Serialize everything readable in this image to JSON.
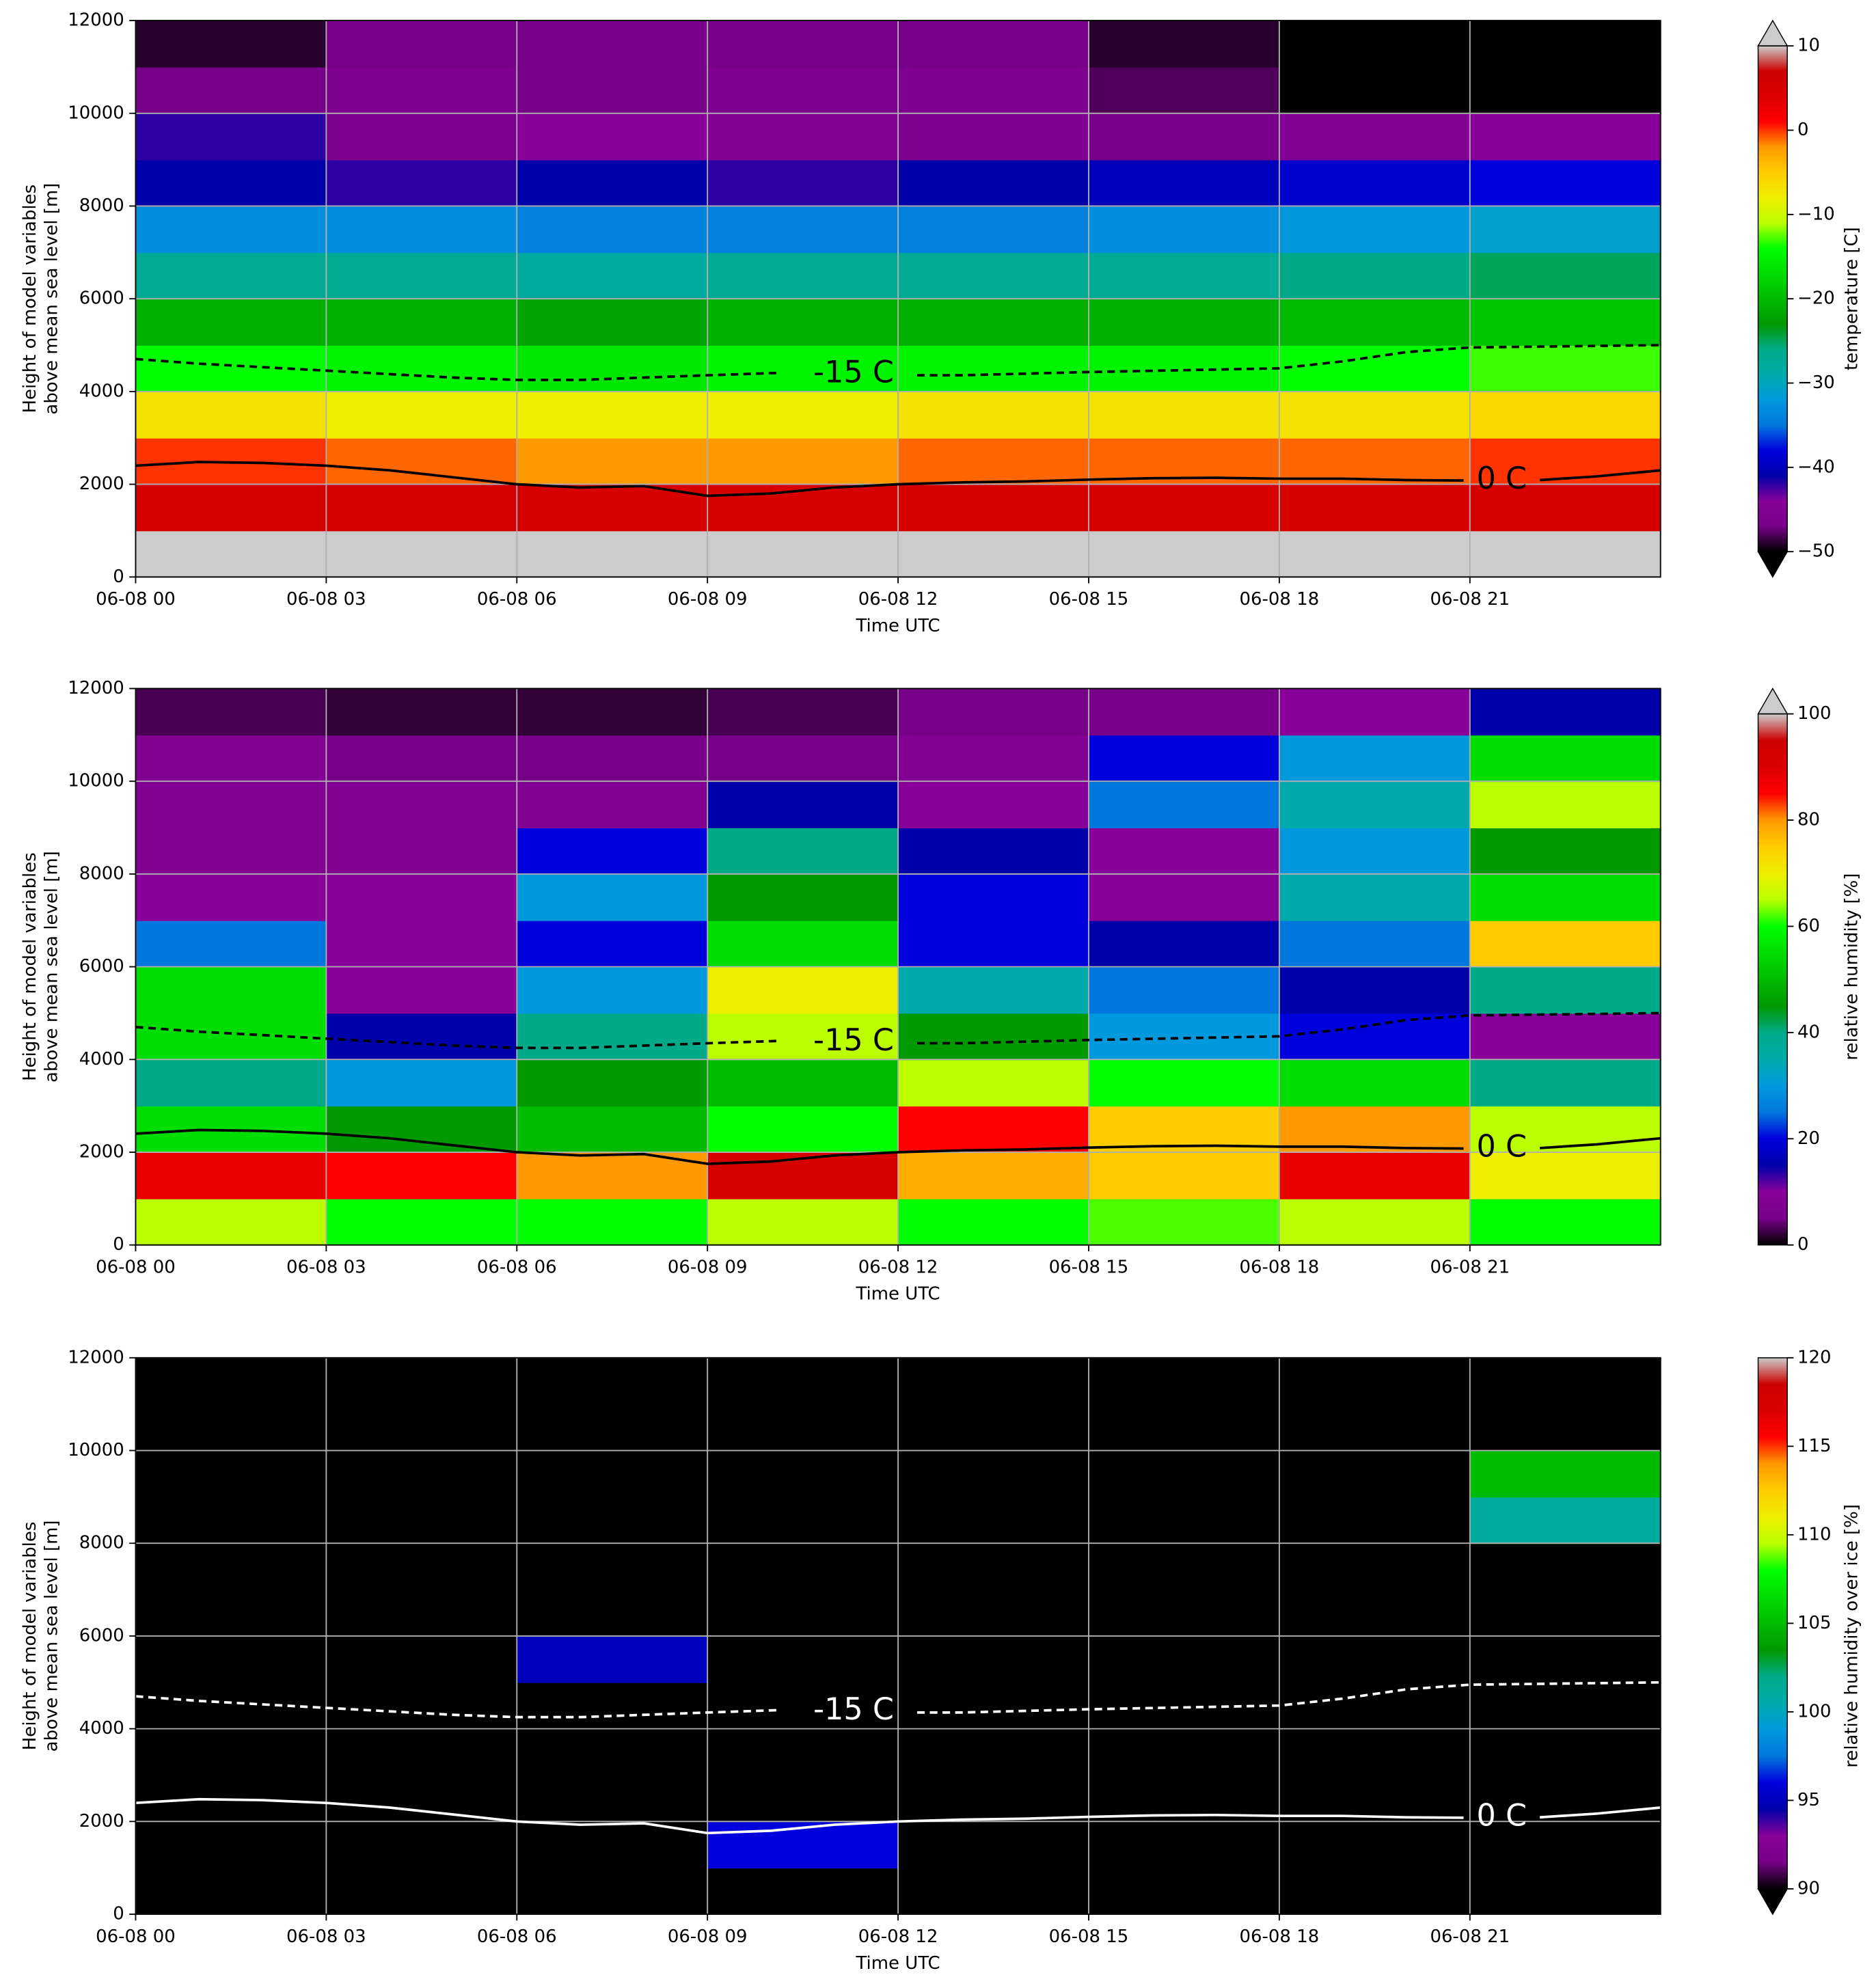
{
  "chart_data": [
    {
      "type": "heatmap",
      "xlabel": "Time UTC",
      "ylabel": [
        "Height of model variables",
        "above mean sea level [m]"
      ],
      "xlim": [
        0,
        24
      ],
      "xticks": [
        {
          "value": 0,
          "label": "06-08 00"
        },
        {
          "value": 3,
          "label": "06-08 03"
        },
        {
          "value": 6,
          "label": "06-08 06"
        },
        {
          "value": 9,
          "label": "06-08 09"
        },
        {
          "value": 12,
          "label": "06-08 12"
        },
        {
          "value": 15,
          "label": "06-08 15"
        },
        {
          "value": 18,
          "label": "06-08 18"
        },
        {
          "value": 21,
          "label": "06-08 21"
        }
      ],
      "ylim": [
        0,
        12000
      ],
      "yticks": [
        0,
        2000,
        4000,
        6000,
        8000,
        10000,
        12000
      ],
      "grid": true,
      "colormap": "nipy_spectral",
      "over_color": "#cccccc",
      "under_color": "#000000",
      "extend": "both",
      "clim": [
        -50,
        10
      ],
      "cticks": [
        {
          "value": -50,
          "label": "−50"
        },
        {
          "value": -40,
          "label": "−40"
        },
        {
          "value": -30,
          "label": "−30"
        },
        {
          "value": -20,
          "label": "−20"
        },
        {
          "value": -10,
          "label": "−10"
        },
        0,
        10
      ],
      "colorbar_label": "temperature [C]",
      "contour_color": "#000000",
      "times": [
        1.5,
        4.5,
        7.5,
        10.5,
        13.5,
        16.5,
        19.5,
        22.5
      ],
      "heights": [
        500,
        1500,
        2500,
        3500,
        4500,
        5500,
        6500,
        7500,
        8500,
        9500,
        10500,
        11500
      ],
      "z": [
        [
          11,
          11,
          11,
          11,
          11,
          11,
          11,
          11
        ],
        [
          5,
          6,
          5,
          5,
          5,
          5,
          5,
          5
        ],
        [
          0,
          -1,
          -2,
          -2,
          -1,
          -1,
          -1,
          0
        ],
        [
          -7,
          -8,
          -8,
          -8,
          -7,
          -7,
          -7,
          -6
        ],
        [
          -14,
          -15,
          -16,
          -15,
          -15,
          -15,
          -14,
          -13
        ],
        [
          -21,
          -21,
          -22,
          -21,
          -21,
          -21,
          -20,
          -19
        ],
        [
          -27,
          -27,
          -28,
          -27,
          -27,
          -27,
          -26,
          -25
        ],
        [
          -33,
          -33,
          -34,
          -34,
          -34,
          -33,
          -32,
          -31
        ],
        [
          -41,
          -42,
          -41,
          -42,
          -41,
          -40,
          -39,
          -38
        ],
        [
          -42,
          -46,
          -44,
          -45,
          -46,
          -47,
          -45,
          -44
        ],
        [
          -47,
          -46,
          -47,
          -46,
          -46,
          -48,
          -51,
          -51
        ],
        [
          -49,
          -47,
          -47,
          -47,
          -47,
          -49,
          -52,
          -52
        ]
      ]
    },
    {
      "type": "heatmap",
      "xlabel": "Time UTC",
      "ylabel": [
        "Height of model variables",
        "above mean sea level [m]"
      ],
      "xlim": [
        0,
        24
      ],
      "xticks": [
        {
          "value": 0,
          "label": "06-08 00"
        },
        {
          "value": 3,
          "label": "06-08 03"
        },
        {
          "value": 6,
          "label": "06-08 06"
        },
        {
          "value": 9,
          "label": "06-08 09"
        },
        {
          "value": 12,
          "label": "06-08 12"
        },
        {
          "value": 15,
          "label": "06-08 15"
        },
        {
          "value": 18,
          "label": "06-08 18"
        },
        {
          "value": 21,
          "label": "06-08 21"
        }
      ],
      "ylim": [
        0,
        12000
      ],
      "yticks": [
        0,
        2000,
        4000,
        6000,
        8000,
        10000,
        12000
      ],
      "grid": true,
      "colormap": "nipy_spectral",
      "over_color": "#cccccc",
      "under_color": "#000000",
      "extend": "max",
      "clim": [
        0,
        100
      ],
      "cticks": [
        0,
        20,
        40,
        60,
        80,
        100
      ],
      "colorbar_label": "relative humidity [%]",
      "contour_color": "#000000",
      "times": [
        1.5,
        4.5,
        7.5,
        10.5,
        13.5,
        16.5,
        19.5,
        22.5
      ],
      "heights": [
        500,
        1500,
        2500,
        3500,
        4500,
        5500,
        6500,
        7500,
        8500,
        9500,
        10500,
        11500
      ],
      "z": [
        [
          65,
          60,
          60,
          65,
          60,
          62,
          65,
          60
        ],
        [
          88,
          85,
          80,
          92,
          78,
          75,
          88,
          70
        ],
        [
          55,
          45,
          50,
          60,
          85,
          75,
          80,
          65
        ],
        [
          40,
          30,
          45,
          50,
          65,
          60,
          55,
          40
        ],
        [
          55,
          15,
          40,
          65,
          45,
          30,
          20,
          10
        ],
        [
          55,
          10,
          30,
          70,
          35,
          25,
          15,
          40
        ],
        [
          25,
          10,
          20,
          55,
          20,
          15,
          25,
          75
        ],
        [
          10,
          10,
          30,
          45,
          20,
          10,
          35,
          55
        ],
        [
          8,
          8,
          20,
          40,
          15,
          10,
          30,
          45
        ],
        [
          8,
          8,
          8,
          15,
          10,
          25,
          35,
          65
        ],
        [
          8,
          5,
          5,
          5,
          8,
          20,
          30,
          55
        ],
        [
          3,
          2,
          2,
          3,
          5,
          5,
          10,
          15
        ]
      ]
    },
    {
      "type": "heatmap",
      "xlabel": "Time UTC",
      "ylabel": [
        "Height of model variables",
        "above mean sea level [m]"
      ],
      "xlim": [
        0,
        24
      ],
      "xticks": [
        {
          "value": 0,
          "label": "06-08 00"
        },
        {
          "value": 3,
          "label": "06-08 03"
        },
        {
          "value": 6,
          "label": "06-08 06"
        },
        {
          "value": 9,
          "label": "06-08 09"
        },
        {
          "value": 12,
          "label": "06-08 12"
        },
        {
          "value": 15,
          "label": "06-08 15"
        },
        {
          "value": 18,
          "label": "06-08 18"
        },
        {
          "value": 21,
          "label": "06-08 21"
        }
      ],
      "ylim": [
        0,
        12000
      ],
      "yticks": [
        0,
        2000,
        4000,
        6000,
        8000,
        10000,
        12000
      ],
      "grid": true,
      "colormap": "nipy_spectral",
      "over_color": "#cccccc",
      "under_color": "#000000",
      "extend": "min",
      "clim": [
        90,
        120
      ],
      "cticks": [
        90,
        95,
        100,
        105,
        110,
        115,
        120
      ],
      "colorbar_label": "relative humidity over ice [%]",
      "contour_color": "#ffffff",
      "times": [
        1.5,
        4.5,
        7.5,
        10.5,
        13.5,
        16.5,
        19.5,
        22.5
      ],
      "heights": [
        500,
        1500,
        2500,
        3500,
        4500,
        5500,
        6500,
        7500,
        8500,
        9500,
        10500,
        11500
      ],
      "z": [
        [
          85,
          85,
          85,
          85,
          85,
          85,
          85,
          85
        ],
        [
          85,
          85,
          85,
          96,
          85,
          85,
          85,
          85
        ],
        [
          85,
          85,
          85,
          85,
          85,
          85,
          85,
          85
        ],
        [
          85,
          85,
          85,
          85,
          85,
          85,
          85,
          85
        ],
        [
          85,
          85,
          85,
          85,
          85,
          85,
          85,
          85
        ],
        [
          85,
          85,
          95,
          85,
          85,
          85,
          85,
          85
        ],
        [
          85,
          85,
          85,
          85,
          85,
          85,
          85,
          85
        ],
        [
          85,
          85,
          85,
          85,
          85,
          85,
          85,
          85
        ],
        [
          85,
          85,
          85,
          85,
          85,
          85,
          85,
          101
        ],
        [
          85,
          85,
          85,
          85,
          85,
          85,
          85,
          105
        ],
        [
          85,
          85,
          85,
          85,
          85,
          85,
          85,
          85
        ],
        [
          85,
          85,
          85,
          85,
          85,
          85,
          85,
          85
        ]
      ]
    }
  ],
  "contours": [
    {
      "label": "-15 C",
      "style": "dashed",
      "x": [
        0,
        1,
        3,
        5,
        6,
        7,
        8,
        9,
        10.1,
        11.3,
        12.3,
        13,
        15,
        18,
        19,
        20,
        21,
        24
      ],
      "y": [
        4700,
        4600,
        4450,
        4300,
        4250,
        4250,
        4300,
        4350,
        4400,
        null,
        4350,
        4350,
        4420,
        4500,
        4650,
        4850,
        4950,
        5000
      ]
    },
    {
      "label": "0 C",
      "style": "solid",
      "x": [
        0,
        1,
        2,
        3,
        4,
        5,
        6,
        7,
        8,
        9,
        10,
        11,
        12,
        13,
        14,
        15,
        16,
        17,
        18,
        19,
        20,
        20.9,
        21.5,
        22.1,
        23,
        24
      ],
      "y": [
        2400,
        2480,
        2460,
        2400,
        2300,
        2150,
        2000,
        1930,
        1960,
        1750,
        1800,
        1930,
        2000,
        2040,
        2060,
        2100,
        2130,
        2140,
        2120,
        2120,
        2090,
        2080,
        null,
        2090,
        2170,
        2300
      ]
    }
  ]
}
